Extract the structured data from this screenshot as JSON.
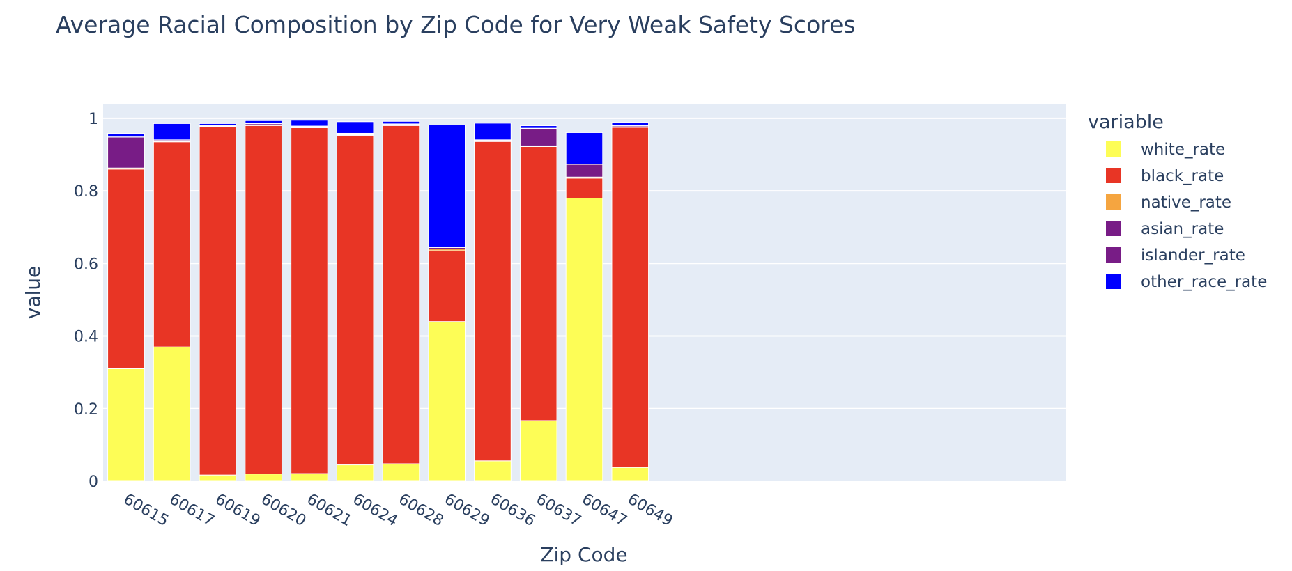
{
  "chart_data": {
    "type": "bar",
    "barmode": "stack",
    "title": "Average Racial Composition by Zip Code for Very Weak Safety Scores",
    "xlabel": "Zip Code",
    "ylabel": "value",
    "ylim": [
      0,
      1.04
    ],
    "yticks": [
      0,
      0.2,
      0.4,
      0.6,
      0.8,
      1
    ],
    "ytick_labels": [
      "0",
      "0.2",
      "0.4",
      "0.6",
      "0.8",
      "1"
    ],
    "grid": true,
    "legend_title": "variable",
    "legend_position": "right",
    "categories": [
      "60615",
      "60617",
      "60619",
      "60620",
      "60621",
      "60624",
      "60628",
      "60629",
      "60636",
      "60637",
      "60647",
      "60649"
    ],
    "series": [
      {
        "name": "white_rate",
        "color": "#fdfd56",
        "values": [
          0.31,
          0.37,
          0.017,
          0.02,
          0.021,
          0.045,
          0.048,
          0.44,
          0.056,
          0.167,
          0.78,
          0.038
        ]
      },
      {
        "name": "black_rate",
        "color": "#e83525",
        "values": [
          0.55,
          0.565,
          0.96,
          0.96,
          0.953,
          0.908,
          0.932,
          0.195,
          0.88,
          0.755,
          0.055,
          0.937
        ]
      },
      {
        "name": "native_rate",
        "color": "#f5a540",
        "values": [
          0.003,
          0.002,
          0.001,
          0.001,
          0.002,
          0.002,
          0.002,
          0.005,
          0.002,
          0.002,
          0.003,
          0.001
        ]
      },
      {
        "name": "asian_rate",
        "color": "#781c86",
        "values": [
          0.085,
          0.003,
          0.002,
          0.004,
          0.002,
          0.003,
          0.002,
          0.004,
          0.002,
          0.048,
          0.035,
          0.003
        ]
      },
      {
        "name": "islander_rate",
        "color": "#781c86",
        "values": [
          0.0005,
          0.0005,
          0.0005,
          0.0005,
          0.0005,
          0.0005,
          0.0005,
          0.0005,
          0.0005,
          0.0005,
          0.0005,
          0.0005
        ]
      },
      {
        "name": "other_race_rate",
        "color": "#0000ff",
        "values": [
          0.01,
          0.045,
          0.005,
          0.008,
          0.016,
          0.032,
          0.007,
          0.337,
          0.046,
          0.007,
          0.087,
          0.009
        ]
      }
    ]
  }
}
